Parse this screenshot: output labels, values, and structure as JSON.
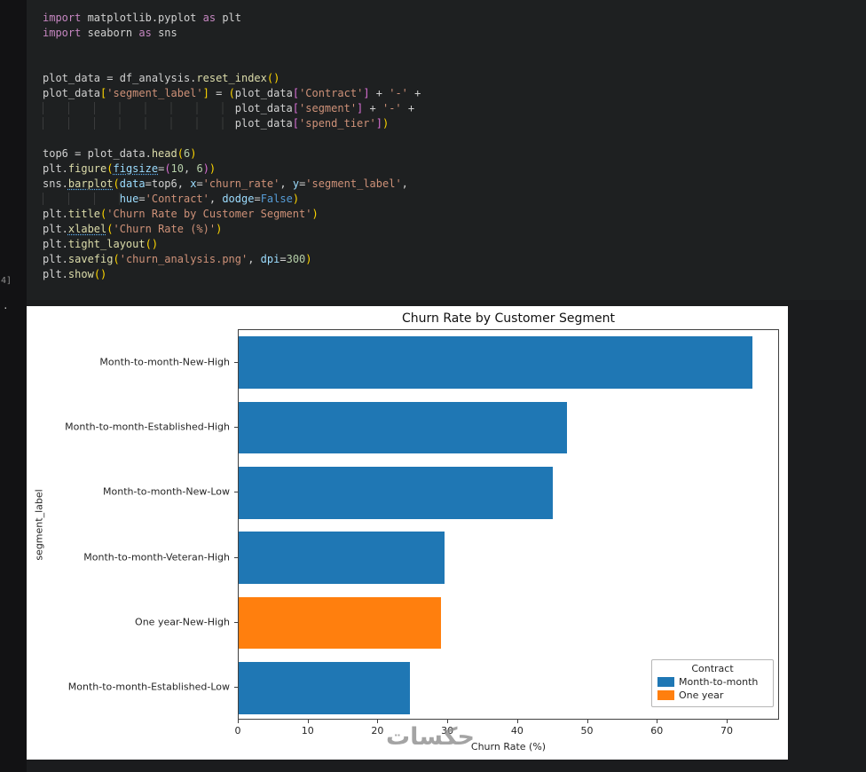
{
  "editor": {
    "execution_count": "4]",
    "dot": ".",
    "code_lines": [
      [
        [
          "kw",
          "import"
        ],
        [
          "pl",
          " matplotlib.pyplot "
        ],
        [
          "kw",
          "as"
        ],
        [
          "pl",
          " plt"
        ]
      ],
      [
        [
          "kw",
          "import"
        ],
        [
          "pl",
          " seaborn "
        ],
        [
          "kw",
          "as"
        ],
        [
          "pl",
          " sns"
        ]
      ],
      [],
      [],
      [
        [
          "pl",
          "plot_data = df_analysis."
        ],
        [
          "fn",
          "reset_index"
        ],
        [
          "b1",
          "()"
        ]
      ],
      [
        [
          "pl",
          "plot_data"
        ],
        [
          "b1",
          "["
        ],
        [
          "st",
          "'segment_label'"
        ],
        [
          "b1",
          "]"
        ],
        [
          "pl",
          " = "
        ],
        [
          "b1",
          "("
        ],
        [
          "pl",
          "plot_data"
        ],
        [
          "b2",
          "["
        ],
        [
          "st",
          "'Contract'"
        ],
        [
          "b2",
          "]"
        ],
        [
          "pl",
          " + "
        ],
        [
          "st",
          "'-'"
        ],
        [
          "pl",
          " +"
        ]
      ],
      [
        [
          "ws",
          "                              "
        ],
        [
          "pl",
          "plot_data"
        ],
        [
          "b2",
          "["
        ],
        [
          "st",
          "'segment'"
        ],
        [
          "b2",
          "]"
        ],
        [
          "pl",
          " + "
        ],
        [
          "st",
          "'-'"
        ],
        [
          "pl",
          " +"
        ]
      ],
      [
        [
          "ws",
          "                              "
        ],
        [
          "pl",
          "plot_data"
        ],
        [
          "b2",
          "["
        ],
        [
          "st",
          "'spend_tier'"
        ],
        [
          "b2",
          "]"
        ],
        [
          "b1",
          ")"
        ]
      ],
      [],
      [
        [
          "pl",
          "top6 = plot_data."
        ],
        [
          "fn",
          "head"
        ],
        [
          "b1",
          "("
        ],
        [
          "nu",
          "6"
        ],
        [
          "b1",
          ")"
        ]
      ],
      [
        [
          "pl",
          "plt."
        ],
        [
          "fn",
          "figure"
        ],
        [
          "b1",
          "("
        ],
        [
          "pr",
          "figsize",
          true
        ],
        [
          "pl",
          "="
        ],
        [
          "b2",
          "("
        ],
        [
          "nu",
          "10"
        ],
        [
          "pl",
          ", "
        ],
        [
          "nu",
          "6"
        ],
        [
          "b2",
          ")"
        ],
        [
          "b1",
          ")"
        ]
      ],
      [
        [
          "pl",
          "sns."
        ],
        [
          "fn",
          "barplot",
          true
        ],
        [
          "b1",
          "("
        ],
        [
          "pr",
          "data"
        ],
        [
          "pl",
          "=top6, "
        ],
        [
          "pr",
          "x"
        ],
        [
          "pl",
          "="
        ],
        [
          "st",
          "'churn_rate'"
        ],
        [
          "pl",
          ", "
        ],
        [
          "pr",
          "y"
        ],
        [
          "pl",
          "="
        ],
        [
          "st",
          "'segment_label'"
        ],
        [
          "pl",
          ","
        ]
      ],
      [
        [
          "ws",
          "            "
        ],
        [
          "pr",
          "hue"
        ],
        [
          "pl",
          "="
        ],
        [
          "st",
          "'Contract'"
        ],
        [
          "pl",
          ", "
        ],
        [
          "pr",
          "dodge"
        ],
        [
          "pl",
          "="
        ],
        [
          "ct",
          "False"
        ],
        [
          "b1",
          ")"
        ]
      ],
      [
        [
          "pl",
          "plt."
        ],
        [
          "fn",
          "title"
        ],
        [
          "b1",
          "("
        ],
        [
          "st",
          "'Churn Rate by Customer Segment'"
        ],
        [
          "b1",
          ")"
        ]
      ],
      [
        [
          "pl",
          "plt."
        ],
        [
          "fn",
          "xlabel",
          true
        ],
        [
          "b1",
          "("
        ],
        [
          "st",
          "'Churn Rate (%)'"
        ],
        [
          "b1",
          ")"
        ]
      ],
      [
        [
          "pl",
          "plt."
        ],
        [
          "fn",
          "tight_layout"
        ],
        [
          "b1",
          "()"
        ]
      ],
      [
        [
          "pl",
          "plt."
        ],
        [
          "fn",
          "savefig"
        ],
        [
          "b1",
          "("
        ],
        [
          "st",
          "'churn_analysis.png'"
        ],
        [
          "pl",
          ", "
        ],
        [
          "pr",
          "dpi"
        ],
        [
          "pl",
          "="
        ],
        [
          "nu",
          "300"
        ],
        [
          "b1",
          ")"
        ]
      ],
      [
        [
          "pl",
          "plt."
        ],
        [
          "fn",
          "show"
        ],
        [
          "b1",
          "()"
        ]
      ]
    ]
  },
  "chart_data": {
    "type": "bar",
    "orientation": "horizontal",
    "title": "Churn Rate by Customer Segment",
    "xlabel": "Churn Rate (%)",
    "ylabel": "segment_label",
    "categories": [
      "Month-to-month-New-High",
      "Month-to-month-Established-High",
      "Month-to-month-New-Low",
      "Month-to-month-Veteran-High",
      "One year-New-High",
      "Month-to-month-Established-Low"
    ],
    "values": [
      73.5,
      47,
      45,
      29.5,
      29,
      24.5
    ],
    "colors": [
      "#1f77b4",
      "#1f77b4",
      "#1f77b4",
      "#1f77b4",
      "#ff7f0e",
      "#1f77b4"
    ],
    "xlim": [
      0,
      77.5
    ],
    "xticks": [
      0,
      10,
      20,
      30,
      40,
      50,
      60,
      70
    ],
    "grid": false,
    "legend": {
      "title": "Contract",
      "position": "lower right",
      "entries": [
        {
          "label": "Month-to-month",
          "color": "#1f77b4"
        },
        {
          "label": "One year",
          "color": "#ff7f0e"
        }
      ]
    }
  },
  "watermark": {
    "text": "حكسات",
    "color": "#8e8e8e"
  }
}
